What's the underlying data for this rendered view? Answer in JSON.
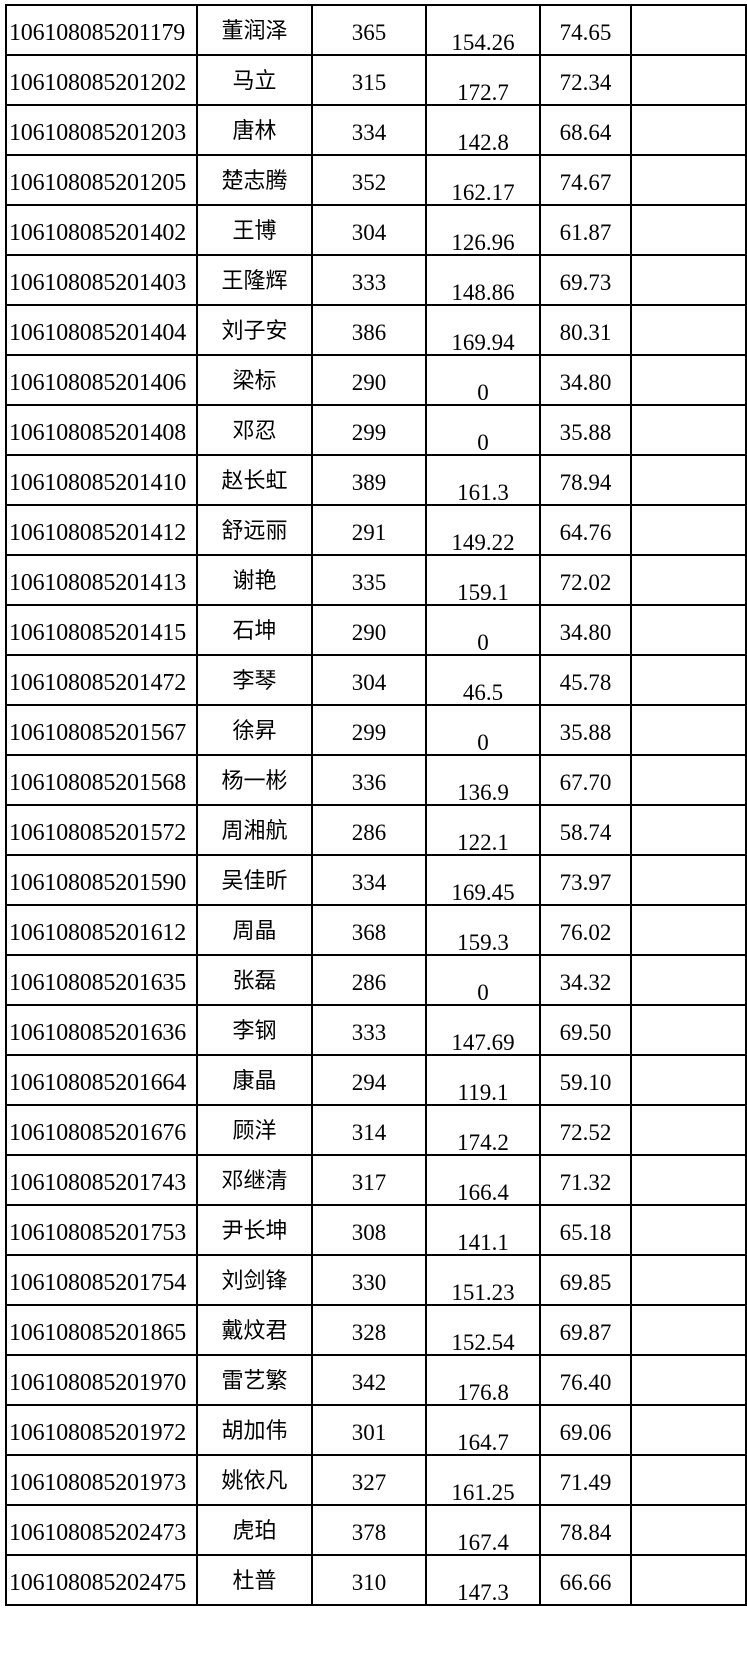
{
  "rows": [
    [
      "106108085201179",
      "董润泽",
      "365",
      "154.26",
      "74.65",
      ""
    ],
    [
      "106108085201202",
      "马立",
      "315",
      "172.7",
      "72.34",
      ""
    ],
    [
      "106108085201203",
      "唐林",
      "334",
      "142.8",
      "68.64",
      ""
    ],
    [
      "106108085201205",
      "楚志腾",
      "352",
      "162.17",
      "74.67",
      ""
    ],
    [
      "106108085201402",
      "王博",
      "304",
      "126.96",
      "61.87",
      ""
    ],
    [
      "106108085201403",
      "王隆辉",
      "333",
      "148.86",
      "69.73",
      ""
    ],
    [
      "106108085201404",
      "刘子安",
      "386",
      "169.94",
      "80.31",
      ""
    ],
    [
      "106108085201406",
      "梁标",
      "290",
      "0",
      "34.80",
      ""
    ],
    [
      "106108085201408",
      "邓忍",
      "299",
      "0",
      "35.88",
      ""
    ],
    [
      "106108085201410",
      "赵长虹",
      "389",
      "161.3",
      "78.94",
      ""
    ],
    [
      "106108085201412",
      "舒远丽",
      "291",
      "149.22",
      "64.76",
      ""
    ],
    [
      "106108085201413",
      "谢艳",
      "335",
      "159.1",
      "72.02",
      ""
    ],
    [
      "106108085201415",
      "石坤",
      "290",
      "0",
      "34.80",
      ""
    ],
    [
      "106108085201472",
      "李琴",
      "304",
      "46.5",
      "45.78",
      ""
    ],
    [
      "106108085201567",
      "徐昇",
      "299",
      "0",
      "35.88",
      ""
    ],
    [
      "106108085201568",
      "杨一彬",
      "336",
      "136.9",
      "67.70",
      ""
    ],
    [
      "106108085201572",
      "周湘航",
      "286",
      "122.1",
      "58.74",
      ""
    ],
    [
      "106108085201590",
      "吴佳昕",
      "334",
      "169.45",
      "73.97",
      ""
    ],
    [
      "106108085201612",
      "周晶",
      "368",
      "159.3",
      "76.02",
      ""
    ],
    [
      "106108085201635",
      "张磊",
      "286",
      "0",
      "34.32",
      ""
    ],
    [
      "106108085201636",
      "李钢",
      "333",
      "147.69",
      "69.50",
      ""
    ],
    [
      "106108085201664",
      "康晶",
      "294",
      "119.1",
      "59.10",
      ""
    ],
    [
      "106108085201676",
      "顾洋",
      "314",
      "174.2",
      "72.52",
      ""
    ],
    [
      "106108085201743",
      "邓继清",
      "317",
      "166.4",
      "71.32",
      ""
    ],
    [
      "106108085201753",
      "尹长坤",
      "308",
      "141.1",
      "65.18",
      ""
    ],
    [
      "106108085201754",
      "刘剑锋",
      "330",
      "151.23",
      "69.85",
      ""
    ],
    [
      "106108085201865",
      "戴炆君",
      "328",
      "152.54",
      "69.87",
      ""
    ],
    [
      "106108085201970",
      "雷艺繁",
      "342",
      "176.8",
      "76.40",
      ""
    ],
    [
      "106108085201972",
      "胡加伟",
      "301",
      "164.7",
      "69.06",
      ""
    ],
    [
      "106108085201973",
      "姚依凡",
      "327",
      "161.25",
      "71.49",
      ""
    ],
    [
      "106108085202473",
      "虎珀",
      "378",
      "167.4",
      "78.84",
      ""
    ],
    [
      "106108085202475",
      "杜普",
      "310",
      "147.3",
      "66.66",
      ""
    ]
  ]
}
